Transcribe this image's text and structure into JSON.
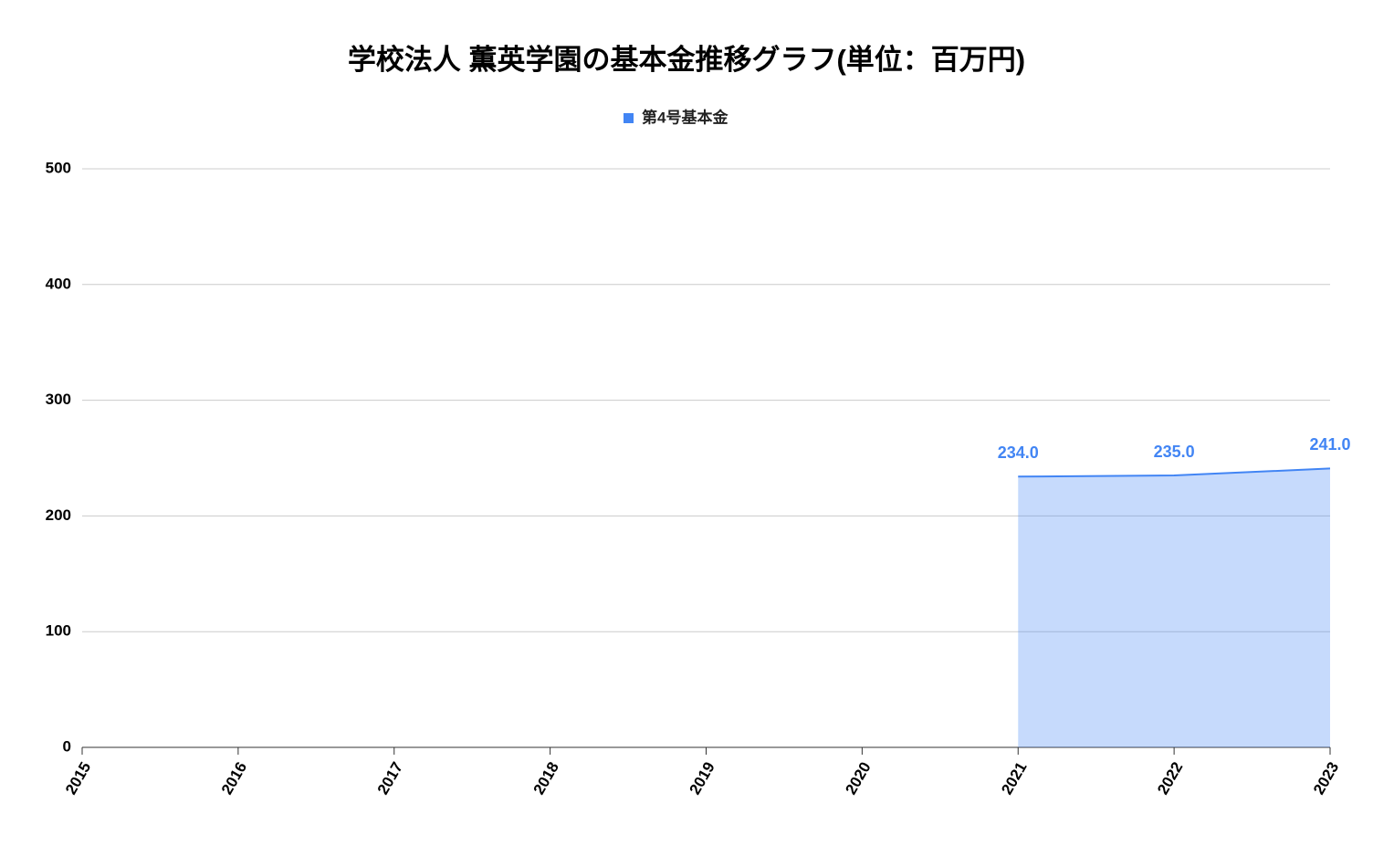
{
  "chart_data": {
    "type": "area",
    "title": "学校法人 薫英学園の基本金推移グラフ(単位：百万円)",
    "x": [
      2015,
      2016,
      2017,
      2018,
      2019,
      2020,
      2021,
      2022,
      2023
    ],
    "xlim": [
      2015,
      2023
    ],
    "xticks": [
      2015,
      2016,
      2017,
      2018,
      2019,
      2020,
      2021,
      2022,
      2023
    ],
    "ylim": [
      0,
      500
    ],
    "yticks": [
      0,
      100,
      200,
      300,
      400,
      500
    ],
    "grid": true,
    "legend": "top",
    "series": [
      {
        "name": "第4号基本金",
        "color": "#4285f4",
        "values": [
          null,
          null,
          null,
          null,
          null,
          null,
          234,
          235,
          241
        ],
        "value_labels": [
          null,
          null,
          null,
          null,
          null,
          null,
          "234.0",
          "235.0",
          "241.0"
        ]
      }
    ]
  }
}
